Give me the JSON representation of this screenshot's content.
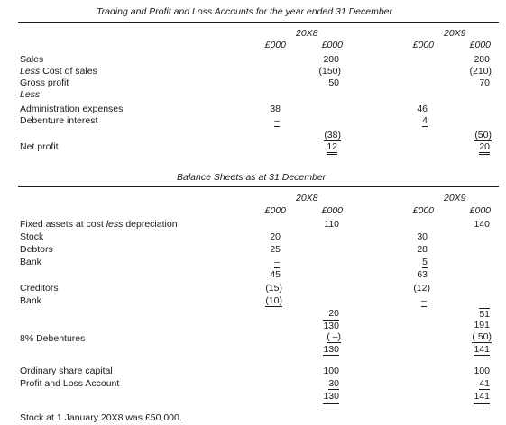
{
  "pl": {
    "title": "Trading and Profit and Loss Accounts for the year ended 31 December",
    "year1": "20X8",
    "year2": "20X9",
    "unit": "£000",
    "rows": {
      "sales": "Sales",
      "cost_of_sales_less": "Less",
      "cost_of_sales": " Cost of sales",
      "gross_profit": "Gross profit",
      "less": "Less",
      "admin": "Administration expenses",
      "debenture_interest": "Debenture interest",
      "net_profit": "Net profit"
    },
    "y1": {
      "sales": "200",
      "cos": "(150)",
      "gp": "50",
      "admin": "38",
      "debint": "–",
      "exp_total": "(38)",
      "np": "12"
    },
    "y2": {
      "sales": "280",
      "cos": "(210)",
      "gp": "70",
      "admin": "46",
      "debint": "4",
      "exp_total": "(50)",
      "np": "20"
    }
  },
  "bs": {
    "title": "Balance Sheets as at 31 December",
    "year1": "20X8",
    "year2": "20X9",
    "unit": "£000",
    "rows": {
      "fixed_assets_pre": "Fixed assets at cost ",
      "fixed_assets_less": "less",
      "fixed_assets_post": " depreciation",
      "stock": "Stock",
      "debtors": "Debtors",
      "bank": "Bank",
      "creditors": "Creditors",
      "bank2": "Bank",
      "debentures": "8% Debentures",
      "share_capital": "Ordinary share capital",
      "pl_account": "Profit and Loss Account"
    },
    "y1": {
      "fixed": "110",
      "stock": "20",
      "debtors": "25",
      "bank": "–",
      "ca_total": "45",
      "creditors": "(15)",
      "bank2": "(10)",
      "wc": "20",
      "total": "130",
      "deb": "( –)",
      "net": "130",
      "share": "100",
      "pl": "30",
      "cap_total": "130"
    },
    "y2": {
      "fixed": "140",
      "stock": "30",
      "debtors": "28",
      "bank": "5",
      "ca_total": "63",
      "creditors": "(12)",
      "bank2": "–",
      "wc": "51",
      "total": "191",
      "deb": "( 50)",
      "net": "141",
      "share": "100",
      "pl": "41",
      "cap_total": "141"
    }
  },
  "footnote": "Stock at 1 January 20X8 was £50,000."
}
